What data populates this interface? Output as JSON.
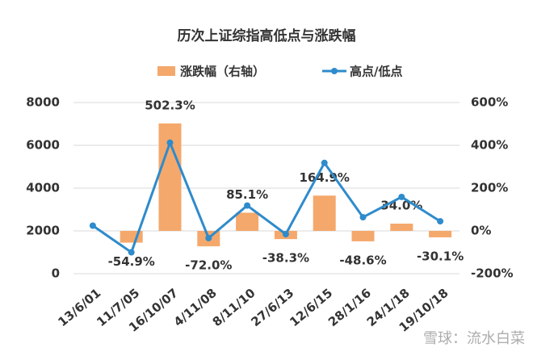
{
  "chart_data": {
    "type": "combo",
    "title": "历次上证综指高低点与涨跌幅",
    "categories": [
      "13/6/01",
      "11/7/05",
      "16/10/07",
      "4/11/08",
      "8/11/10",
      "27/6/13",
      "12/6/15",
      "28/1/16",
      "24/1/18",
      "19/10/18"
    ],
    "series": [
      {
        "name": "涨跌幅（右轴）",
        "type": "bar",
        "axis": "y2",
        "color": "#f5a86b",
        "values": [
          null,
          -54.9,
          502.3,
          -72.0,
          85.1,
          -38.3,
          164.9,
          -48.6,
          34.0,
          -30.1
        ],
        "value_labels": [
          null,
          "-54.9%",
          "502.3%",
          "-72.0%",
          "85.1%",
          "-38.3%",
          "164.9%",
          "-48.6%",
          "34.0%",
          "-30.1%"
        ]
      },
      {
        "name": "高点/低点",
        "type": "line",
        "color": "#2e8bcc",
        "values": [
          2245,
          998,
          6124,
          1664,
          3186,
          1849,
          5178,
          2638,
          3587,
          2449
        ]
      }
    ],
    "ylim": [
      0,
      8000
    ],
    "yticks": [
      0,
      2000,
      4000,
      6000,
      8000
    ],
    "y2lim": [
      -200,
      600
    ],
    "y2ticks": [
      {
        "value": -200,
        "label": "-200%"
      },
      {
        "value": 0,
        "label": "0%"
      },
      {
        "value": 200,
        "label": "200%"
      },
      {
        "value": 400,
        "label": "400%"
      },
      {
        "value": 600,
        "label": "600%"
      }
    ],
    "grid": true,
    "legend": "top",
    "watermark": "雪球：流水白菜"
  }
}
